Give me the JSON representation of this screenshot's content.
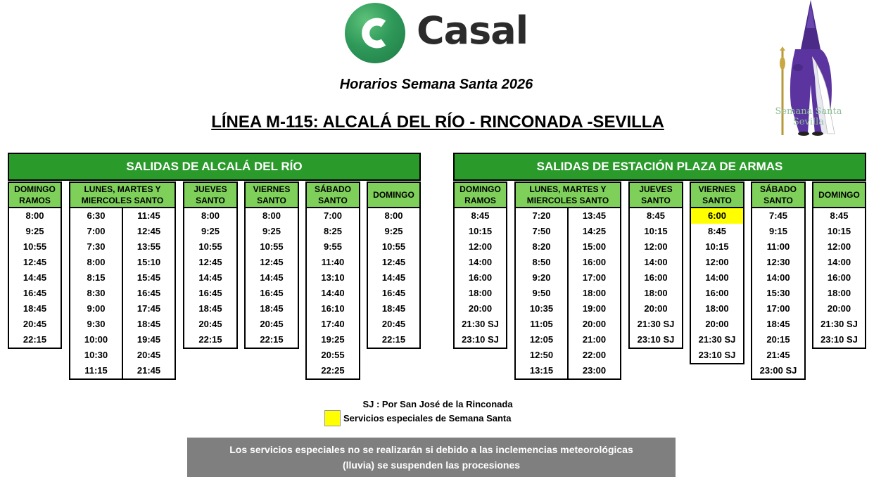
{
  "brand": {
    "name": "Casal",
    "logo_letter": "C"
  },
  "subtitle": "Horarios Semana Santa 2026",
  "line_title": "LÍNEA M-115: ALCALÁ DEL RÍO - RINCONADA -SEVILLA",
  "badge": {
    "line1": "Semana Santa",
    "line2": "Sevilla"
  },
  "left": {
    "header": "SALIDAS DE ALCALÁ DEL RÍO",
    "cols": {
      "domingo_ramos": {
        "label": "DOMINGO RAMOS",
        "times": [
          "8:00",
          "9:25",
          "10:55",
          "12:45",
          "14:45",
          "16:45",
          "18:45",
          "20:45",
          "22:15"
        ]
      },
      "lunes_miercoles": {
        "label": "LUNES, MARTES Y MIERCOLES SANTO",
        "a": [
          "6:30",
          "7:00",
          "7:30",
          "8:00",
          "8:15",
          "8:30",
          "9:00",
          "9:30",
          "10:00",
          "10:30",
          "11:15"
        ],
        "b": [
          "11:45",
          "12:45",
          "13:55",
          "15:10",
          "15:45",
          "16:45",
          "17:45",
          "18:45",
          "19:45",
          "20:45",
          "21:45"
        ]
      },
      "jueves": {
        "label": "JUEVES SANTO",
        "times": [
          "8:00",
          "9:25",
          "10:55",
          "12:45",
          "14:45",
          "16:45",
          "18:45",
          "20:45",
          "22:15"
        ]
      },
      "viernes": {
        "label": "VIERNES SANTO",
        "times": [
          "8:00",
          "9:25",
          "10:55",
          "12:45",
          "14:45",
          "16:45",
          "18:45",
          "20:45",
          "22:15"
        ]
      },
      "sabado": {
        "label": "SÁBADO SANTO",
        "times": [
          "7:00",
          "8:25",
          "9:55",
          "11:40",
          "13:10",
          "14:40",
          "16:10",
          "17:40",
          "19:25",
          "20:55",
          "22:25"
        ]
      },
      "domingo": {
        "label": "DOMINGO",
        "times": [
          "8:00",
          "9:25",
          "10:55",
          "12:45",
          "14:45",
          "16:45",
          "18:45",
          "20:45",
          "22:15"
        ]
      }
    }
  },
  "right": {
    "header": "SALIDAS DE ESTACIÓN PLAZA DE ARMAS",
    "cols": {
      "domingo_ramos": {
        "label": "DOMINGO RAMOS",
        "times": [
          "8:45",
          "10:15",
          "12:00",
          "14:00",
          "16:00",
          "18:00",
          "20:00",
          "21:30 SJ",
          "23:10 SJ"
        ]
      },
      "lunes_miercoles": {
        "label": "LUNES, MARTES Y MIERCOLES SANTO",
        "a": [
          "7:20",
          "7:50",
          "8:20",
          "8:50",
          "9:20",
          "9:50",
          "10:35",
          "11:05",
          "12:05",
          "12:50",
          "13:15"
        ],
        "b": [
          "13:45",
          "14:25",
          "15:00",
          "16:00",
          "17:00",
          "18:00",
          "19:00",
          "20:00",
          "21:00",
          "22:00",
          "23:00"
        ]
      },
      "jueves": {
        "label": "JUEVES SANTO",
        "times": [
          "8:45",
          "10:15",
          "12:00",
          "14:00",
          "16:00",
          "18:00",
          "20:00",
          "21:30 SJ",
          "23:10 SJ"
        ]
      },
      "viernes": {
        "label": "VIERNES SANTO",
        "times": [
          "6:00",
          "8:45",
          "10:15",
          "12:00",
          "14:00",
          "16:00",
          "18:00",
          "20:00",
          "21:30 SJ",
          "23:10 SJ"
        ],
        "highlighted": [
          "6:00"
        ]
      },
      "sabado": {
        "label": "SÁBADO SANTO",
        "times": [
          "7:45",
          "9:15",
          "11:00",
          "12:30",
          "14:00",
          "15:30",
          "17:00",
          "18:45",
          "20:15",
          "21:45",
          "23:00 SJ"
        ]
      },
      "domingo": {
        "label": "DOMINGO",
        "times": [
          "8:45",
          "10:15",
          "12:00",
          "14:00",
          "16:00",
          "18:00",
          "20:00",
          "21:30 SJ",
          "23:10 SJ"
        ]
      }
    }
  },
  "legend": {
    "sj": "SJ : Por San José de la Rinconada",
    "special": "Servicios especiales de Semana Santa",
    "special_color": "#ffff00"
  },
  "notice": {
    "line1": "Los servicios especiales no se realizarán si debido a las inclemencias meteorológicas",
    "line2": "(lluvia) se suspenden las procesiones"
  },
  "colors": {
    "header_green": "#2a9a2a",
    "col_green": "#7ed05a",
    "notice_gray": "#7f7f7f"
  }
}
